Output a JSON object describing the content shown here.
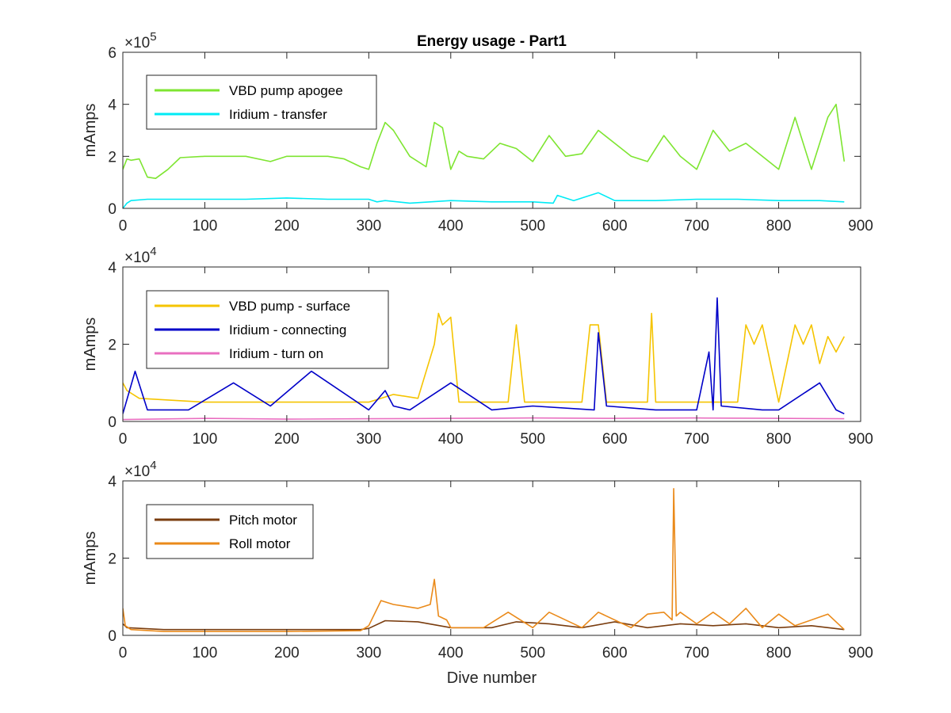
{
  "chart_data": [
    {
      "type": "line",
      "title": "Energy usage - Part1",
      "xlabel": "",
      "ylabel": "mAmps",
      "xlim": [
        0,
        900
      ],
      "ylim": [
        0,
        600000
      ],
      "y_scale_label": "×10",
      "y_scale_exp": "5",
      "xticks": [
        "0",
        "100",
        "200",
        "300",
        "400",
        "500",
        "600",
        "700",
        "800",
        "900"
      ],
      "yticks": [
        "0",
        "2",
        "4",
        "6"
      ],
      "ytick_values": [
        0,
        200000,
        400000,
        600000
      ],
      "legend_position": "top-left",
      "series": [
        {
          "name": "VBD pump apogee",
          "color": "#7ee531",
          "x": [
            0,
            5,
            10,
            20,
            30,
            40,
            55,
            70,
            100,
            150,
            180,
            200,
            250,
            270,
            290,
            300,
            310,
            320,
            330,
            350,
            370,
            380,
            390,
            400,
            410,
            420,
            440,
            460,
            480,
            500,
            520,
            540,
            560,
            580,
            600,
            620,
            640,
            660,
            680,
            700,
            720,
            740,
            760,
            780,
            800,
            820,
            840,
            860,
            870,
            880
          ],
          "y": [
            150000,
            190000,
            185000,
            190000,
            120000,
            115000,
            150000,
            195000,
            200000,
            200000,
            180000,
            200000,
            200000,
            190000,
            160000,
            150000,
            250000,
            330000,
            300000,
            200000,
            160000,
            330000,
            310000,
            150000,
            220000,
            200000,
            190000,
            250000,
            230000,
            180000,
            280000,
            200000,
            210000,
            300000,
            250000,
            200000,
            180000,
            280000,
            200000,
            150000,
            300000,
            220000,
            250000,
            200000,
            150000,
            350000,
            150000,
            350000,
            400000,
            180000
          ]
        },
        {
          "name": "Iridium - transfer",
          "color": "#00ebf5",
          "x": [
            0,
            5,
            10,
            30,
            60,
            100,
            150,
            200,
            250,
            300,
            310,
            320,
            350,
            400,
            450,
            500,
            525,
            530,
            550,
            580,
            600,
            650,
            700,
            750,
            800,
            850,
            880
          ],
          "y": [
            0,
            20000,
            30000,
            35000,
            35000,
            35000,
            35000,
            40000,
            35000,
            35000,
            25000,
            30000,
            20000,
            30000,
            25000,
            25000,
            20000,
            50000,
            30000,
            60000,
            30000,
            30000,
            35000,
            35000,
            30000,
            30000,
            25000
          ]
        }
      ]
    },
    {
      "type": "line",
      "title": "",
      "xlabel": "",
      "ylabel": "mAmps",
      "xlim": [
        0,
        900
      ],
      "ylim": [
        0,
        40000
      ],
      "y_scale_label": "×10",
      "y_scale_exp": "4",
      "xticks": [
        "0",
        "100",
        "200",
        "300",
        "400",
        "500",
        "600",
        "700",
        "800",
        "900"
      ],
      "yticks": [
        "0",
        "2",
        "4"
      ],
      "ytick_values": [
        0,
        20000,
        40000
      ],
      "legend_position": "top-left",
      "series": [
        {
          "name": "VBD pump - surface",
          "color": "#f5c400",
          "x": [
            0,
            5,
            20,
            100,
            200,
            300,
            330,
            360,
            380,
            385,
            390,
            400,
            410,
            420,
            470,
            480,
            490,
            500,
            560,
            570,
            580,
            590,
            640,
            645,
            650,
            700,
            750,
            760,
            770,
            780,
            800,
            820,
            830,
            840,
            850,
            860,
            870,
            880
          ],
          "y": [
            10000,
            8000,
            6000,
            5000,
            5000,
            5000,
            7000,
            6000,
            20000,
            28000,
            25000,
            27000,
            5000,
            5000,
            5000,
            25000,
            5000,
            5000,
            5000,
            25000,
            25000,
            5000,
            5000,
            28000,
            5000,
            5000,
            5000,
            25000,
            20000,
            25000,
            5000,
            25000,
            20000,
            25000,
            15000,
            22000,
            18000,
            22000
          ]
        },
        {
          "name": "Iridium - connecting",
          "color": "#0000c8",
          "x": [
            0,
            15,
            30,
            80,
            135,
            180,
            230,
            300,
            320,
            330,
            350,
            400,
            450,
            500,
            575,
            580,
            590,
            650,
            700,
            715,
            720,
            725,
            730,
            780,
            800,
            850,
            870,
            880
          ],
          "y": [
            2000,
            13000,
            3000,
            3000,
            10000,
            4000,
            13000,
            3000,
            8000,
            4000,
            3000,
            10000,
            3000,
            4000,
            3000,
            23000,
            4000,
            3000,
            3000,
            18000,
            3000,
            32000,
            4000,
            3000,
            3000,
            10000,
            3000,
            2000
          ]
        },
        {
          "name": "Iridium - turn on",
          "color": "#e96fc0",
          "x": [
            0,
            100,
            200,
            300,
            400,
            500,
            600,
            700,
            800,
            880
          ],
          "y": [
            500,
            800,
            600,
            700,
            800,
            900,
            800,
            900,
            800,
            700
          ]
        }
      ]
    },
    {
      "type": "line",
      "title": "",
      "xlabel": "Dive number",
      "ylabel": "mAmps",
      "xlim": [
        0,
        900
      ],
      "ylim": [
        0,
        40000
      ],
      "y_scale_label": "×10",
      "y_scale_exp": "4",
      "xticks": [
        "0",
        "100",
        "200",
        "300",
        "400",
        "500",
        "600",
        "700",
        "800",
        "900"
      ],
      "yticks": [
        "0",
        "2",
        "4"
      ],
      "ytick_values": [
        0,
        20000,
        40000
      ],
      "legend_position": "top-left",
      "series": [
        {
          "name": "Pitch motor",
          "color": "#7a3d0f",
          "x": [
            0,
            5,
            50,
            100,
            200,
            290,
            300,
            320,
            360,
            400,
            450,
            480,
            520,
            560,
            600,
            640,
            680,
            720,
            760,
            800,
            840,
            880
          ],
          "y": [
            3000,
            2000,
            1500,
            1500,
            1500,
            1500,
            1800,
            3800,
            3500,
            2000,
            2000,
            3500,
            3000,
            2000,
            3500,
            2000,
            3000,
            2500,
            3000,
            2000,
            2500,
            1500
          ]
        },
        {
          "name": "Roll motor",
          "color": "#ea8a1a",
          "x": [
            0,
            3,
            10,
            50,
            100,
            200,
            290,
            300,
            315,
            330,
            360,
            375,
            380,
            385,
            395,
            400,
            440,
            470,
            500,
            520,
            560,
            580,
            620,
            640,
            660,
            670,
            672,
            675,
            680,
            700,
            720,
            740,
            760,
            780,
            800,
            820,
            860,
            880
          ],
          "y": [
            7000,
            2500,
            1500,
            1000,
            1000,
            1000,
            1200,
            2500,
            9000,
            8000,
            7000,
            8000,
            14500,
            5000,
            4000,
            2000,
            2000,
            6000,
            2000,
            6000,
            2000,
            6000,
            2000,
            5500,
            6000,
            4000,
            38000,
            5000,
            6000,
            3000,
            6000,
            3000,
            7000,
            2000,
            5500,
            2500,
            5500,
            1500
          ]
        }
      ]
    }
  ]
}
